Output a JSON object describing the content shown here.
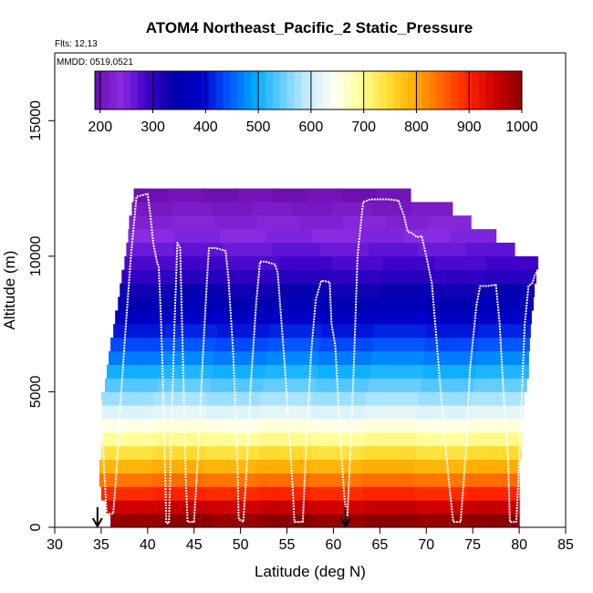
{
  "chart_data": {
    "type": "heatmap",
    "title": "ATOM4 Northeast_Pacific_2 Static_Pressure",
    "flights_text": "Flts: 12,13",
    "mmdd_text": "MMDD: 0519,0521",
    "xlabel": "Latitude (deg N)",
    "ylabel": "Altitude (m)",
    "xlim": [
      30,
      85
    ],
    "ylim": [
      0,
      17500
    ],
    "x_ticks": [
      "30",
      "35",
      "40",
      "45",
      "50",
      "55",
      "60",
      "65",
      "70",
      "75",
      "80",
      "85"
    ],
    "x_tick_values": [
      30,
      35,
      40,
      45,
      50,
      55,
      60,
      65,
      70,
      75,
      80,
      85
    ],
    "y_ticks": [
      "0",
      "5000",
      "10000",
      "15000"
    ],
    "y_tick_values": [
      0,
      5000,
      10000,
      15000
    ],
    "colorbar": {
      "min": 190,
      "max": 1000,
      "tick_labels": [
        "200",
        "300",
        "400",
        "500",
        "600",
        "700",
        "800",
        "900",
        "1000"
      ],
      "tick_values": [
        200,
        300,
        400,
        500,
        600,
        700,
        800,
        900,
        1000
      ],
      "colors": [
        "#6a0dad",
        "#8a2be2",
        "#3a00c8",
        "#0000aa",
        "#0000cc",
        "#0055ff",
        "#00aaff",
        "#66ccff",
        "#cceeff",
        "#fffff0",
        "#ffff99",
        "#ffdd33",
        "#ffaa00",
        "#ff6600",
        "#ff2200",
        "#cc0000",
        "#8b0000"
      ]
    },
    "bin_height_m": 500,
    "bins": [
      {
        "alt": 0,
        "lat_min": 36,
        "lat_max": 80,
        "value": 995
      },
      {
        "alt": 500,
        "lat_min": 35.5,
        "lat_max": 80,
        "value": 950
      },
      {
        "alt": 1000,
        "lat_min": 35,
        "lat_max": 80,
        "value": 895
      },
      {
        "alt": 1500,
        "lat_min": 34.8,
        "lat_max": 80,
        "value": 840
      },
      {
        "alt": 2000,
        "lat_min": 34.8,
        "lat_max": 80,
        "value": 790
      },
      {
        "alt": 2500,
        "lat_min": 35,
        "lat_max": 80.2,
        "value": 745
      },
      {
        "alt": 3000,
        "lat_min": 35,
        "lat_max": 80.3,
        "value": 700
      },
      {
        "alt": 3500,
        "lat_min": 35,
        "lat_max": 80.3,
        "value": 655
      },
      {
        "alt": 4000,
        "lat_min": 35,
        "lat_max": 80.4,
        "value": 615
      },
      {
        "alt": 4500,
        "lat_min": 35,
        "lat_max": 80.5,
        "value": 575
      },
      {
        "alt": 5000,
        "lat_min": 35.4,
        "lat_max": 80.8,
        "value": 540
      },
      {
        "alt": 5500,
        "lat_min": 35.6,
        "lat_max": 81,
        "value": 505
      },
      {
        "alt": 6000,
        "lat_min": 35.8,
        "lat_max": 81,
        "value": 470
      },
      {
        "alt": 6500,
        "lat_min": 36,
        "lat_max": 81.1,
        "value": 440
      },
      {
        "alt": 7000,
        "lat_min": 36.3,
        "lat_max": 81.2,
        "value": 410
      },
      {
        "alt": 7500,
        "lat_min": 36.5,
        "lat_max": 81.3,
        "value": 380
      },
      {
        "alt": 8000,
        "lat_min": 36.8,
        "lat_max": 81.5,
        "value": 355
      },
      {
        "alt": 8500,
        "lat_min": 37,
        "lat_max": 81.6,
        "value": 330
      },
      {
        "alt": 9000,
        "lat_min": 37.2,
        "lat_max": 81.8,
        "value": 305
      },
      {
        "alt": 9500,
        "lat_min": 37.5,
        "lat_max": 82,
        "value": 285
      },
      {
        "alt": 10000,
        "lat_min": 37.7,
        "lat_max": 79.5,
        "value": 265
      },
      {
        "alt": 10500,
        "lat_min": 37.9,
        "lat_max": 77.5,
        "value": 245
      },
      {
        "alt": 11000,
        "lat_min": 38,
        "lat_max": 74.8,
        "value": 228
      },
      {
        "alt": 11500,
        "lat_min": 38.3,
        "lat_max": 72.8,
        "value": 212
      },
      {
        "alt": 12000,
        "lat_min": 38.5,
        "lat_max": 68.3,
        "value": 198
      }
    ],
    "flight_track": [
      [
        34.6,
        1400
      ],
      [
        34.7,
        3000
      ],
      [
        34.8,
        5000
      ],
      [
        35.0,
        4600
      ],
      [
        35.3,
        2200
      ],
      [
        35.6,
        500
      ],
      [
        36.3,
        500
      ],
      [
        36.6,
        1800
      ],
      [
        37.0,
        4200
      ],
      [
        37.6,
        7200
      ],
      [
        38.2,
        10000
      ],
      [
        38.8,
        12200
      ],
      [
        40.0,
        12300
      ],
      [
        40.3,
        11500
      ],
      [
        40.6,
        10500
      ],
      [
        41.0,
        9800
      ],
      [
        41.2,
        9600
      ],
      [
        41.4,
        8000
      ],
      [
        41.6,
        6000
      ],
      [
        41.9,
        1800
      ],
      [
        42.0,
        150
      ],
      [
        42.3,
        150
      ],
      [
        42.6,
        4000
      ],
      [
        42.9,
        7500
      ],
      [
        43.2,
        10500
      ],
      [
        43.5,
        10300
      ],
      [
        43.8,
        6200
      ],
      [
        44.1,
        1800
      ],
      [
        44.3,
        200
      ],
      [
        45.0,
        200
      ],
      [
        45.4,
        2500
      ],
      [
        45.9,
        6000
      ],
      [
        46.4,
        9200
      ],
      [
        46.6,
        10300
      ],
      [
        47.3,
        10300
      ],
      [
        48.4,
        10200
      ],
      [
        48.7,
        9200
      ],
      [
        49.2,
        6500
      ],
      [
        49.6,
        3200
      ],
      [
        49.8,
        300
      ],
      [
        50.3,
        200
      ],
      [
        50.6,
        1800
      ],
      [
        51.1,
        5200
      ],
      [
        51.7,
        8300
      ],
      [
        52.1,
        9800
      ],
      [
        52.7,
        9800
      ],
      [
        53.7,
        9700
      ],
      [
        54.0,
        9400
      ],
      [
        54.8,
        5800
      ],
      [
        55.6,
        1500
      ],
      [
        55.8,
        200
      ],
      [
        56.7,
        200
      ],
      [
        57.1,
        3200
      ],
      [
        57.6,
        6400
      ],
      [
        58.1,
        8400
      ],
      [
        58.7,
        9100
      ],
      [
        59.6,
        9050
      ],
      [
        59.8,
        7500
      ],
      [
        60.2,
        6700
      ],
      [
        60.7,
        3500
      ],
      [
        61.2,
        1000
      ],
      [
        61.5,
        400
      ],
      [
        61.8,
        2500
      ],
      [
        62.2,
        6000
      ],
      [
        62.6,
        10000
      ],
      [
        63.2,
        12000
      ],
      [
        64.0,
        12100
      ],
      [
        66.0,
        12100
      ],
      [
        67.0,
        12050
      ],
      [
        67.6,
        11500
      ],
      [
        68.0,
        10900
      ],
      [
        68.5,
        10850
      ],
      [
        69.0,
        10700
      ],
      [
        69.5,
        10750
      ],
      [
        70.0,
        10000
      ],
      [
        70.6,
        9000
      ],
      [
        71.2,
        6500
      ],
      [
        71.8,
        4000
      ],
      [
        72.4,
        1800
      ],
      [
        72.9,
        200
      ],
      [
        73.7,
        200
      ],
      [
        74.2,
        2500
      ],
      [
        74.7,
        5800
      ],
      [
        75.4,
        8200
      ],
      [
        75.8,
        8900
      ],
      [
        76.6,
        8900
      ],
      [
        77.5,
        8950
      ],
      [
        77.9,
        7500
      ],
      [
        78.3,
        5000
      ],
      [
        78.8,
        2500
      ],
      [
        79.0,
        200
      ],
      [
        79.7,
        200
      ],
      [
        80.0,
        2500
      ],
      [
        80.3,
        5000
      ],
      [
        80.6,
        7500
      ],
      [
        81.0,
        8900
      ],
      [
        81.4,
        9000
      ],
      [
        81.7,
        9300
      ],
      [
        82.0,
        9500
      ]
    ],
    "markers": [
      {
        "lat": 34.6,
        "label": "arrow"
      },
      {
        "lat": 61.3,
        "label": "arrow"
      }
    ]
  }
}
